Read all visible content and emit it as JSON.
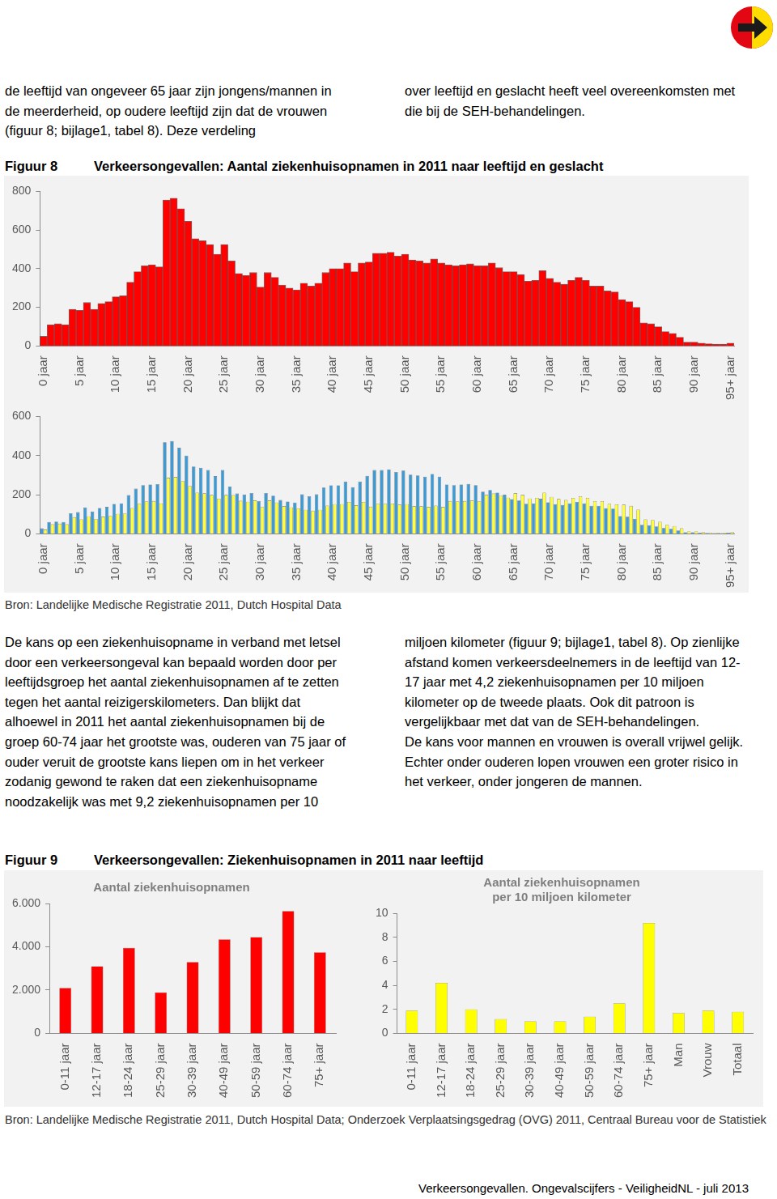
{
  "top_text": {
    "left": "de leeftijd van ongeveer 65 jaar zijn jongens/mannen in de meerderheid, op oudere leeftijd zijn dat de vrouwen (figuur 8; bijlage1, tabel 8). Deze verdeling",
    "right": "over leeftijd en geslacht heeft veel overeenkomsten met die bij de SEH-behandelingen."
  },
  "figure8": {
    "label": "Figuur 8",
    "title": "Verkeersongevallen: Aantal ziekenhuisopnamen in 2011 naar leeftijd en geslacht",
    "source": "Bron: Landelijke Medische Registratie 2011, Dutch Hospital Data"
  },
  "body_text": {
    "left": [
      "De kans op een ziekenhuisopname in verband met letsel door een verkeersongeval kan bepaald worden door per leeftijdsgroep het aantal ziekenhuisopnamen af te zetten tegen het aantal reizigerskilometers. Dan blijkt dat alhoewel in 2011 het aantal ziekenhuisopnamen bij de groep 60-74 jaar het grootste was, ouderen van 75 jaar of ouder veruit de grootste kans liepen om in het verkeer zodanig gewond te raken dat een ziekenhuisopname noodzakelijk was met 9,2 ziekenhuisopnamen per 10"
    ],
    "right": [
      "miljoen kilometer (figuur 9; bijlage1, tabel 8). Op zienlijke afstand komen verkeersdeelnemers in de leeftijd van 12-17 jaar met 4,2 ziekenhuisopnamen per 10 miljoen kilometer op de tweede plaats. Ook dit patroon is vergelijkbaar met dat van de SEH-behandelingen.",
      "De kans voor mannen en vrouwen is overall vrijwel gelijk. Echter onder ouderen lopen vrouwen een groter risico in het verkeer, onder jongeren de mannen."
    ]
  },
  "figure9": {
    "label": "Figuur 9",
    "title": "Verkeersongevallen: Ziekenhuisopnamen in 2011 naar leeftijd",
    "source": "Bron: Landelijke Medische Registratie 2011, Dutch Hospital Data; Onderzoek Verplaatsingsgedrag (OVG) 2011, Centraal Bureau voor de Statistiek"
  },
  "footer": "Verkeersongevallen. Ongevalscijfers - VeiligheidNL - juli 2013",
  "chart_data": [
    {
      "type": "bar",
      "categories": [
        "0 jaar",
        null,
        null,
        null,
        null,
        "5 jaar",
        null,
        null,
        null,
        null,
        "10 jaar",
        null,
        null,
        null,
        null,
        "15 jaar",
        null,
        null,
        null,
        null,
        "20 jaar",
        null,
        null,
        null,
        null,
        "25 jaar",
        null,
        null,
        null,
        null,
        "30 jaar",
        null,
        null,
        null,
        null,
        "35 jaar",
        null,
        null,
        null,
        null,
        "40 jaar",
        null,
        null,
        null,
        null,
        "45 jaar",
        null,
        null,
        null,
        null,
        "50 jaar",
        null,
        null,
        null,
        null,
        "55 jaar",
        null,
        null,
        null,
        null,
        "60 jaar",
        null,
        null,
        null,
        null,
        "65 jaar",
        null,
        null,
        null,
        null,
        "70 jaar",
        null,
        null,
        null,
        null,
        "75 jaar",
        null,
        null,
        null,
        null,
        "80 jaar",
        null,
        null,
        null,
        null,
        "85 jaar",
        null,
        null,
        null,
        null,
        "90 jaar",
        null,
        null,
        null,
        null,
        "95+ jaar"
      ],
      "values": [
        50,
        110,
        115,
        110,
        190,
        185,
        225,
        190,
        220,
        230,
        255,
        260,
        330,
        385,
        415,
        420,
        410,
        755,
        765,
        710,
        645,
        555,
        545,
        525,
        475,
        525,
        440,
        375,
        365,
        380,
        305,
        380,
        355,
        315,
        300,
        290,
        325,
        310,
        325,
        380,
        400,
        400,
        430,
        385,
        430,
        435,
        480,
        480,
        485,
        465,
        475,
        445,
        440,
        430,
        450,
        430,
        420,
        415,
        420,
        425,
        415,
        415,
        430,
        405,
        385,
        385,
        370,
        335,
        340,
        390,
        350,
        330,
        320,
        340,
        355,
        340,
        310,
        310,
        285,
        280,
        240,
        230,
        200,
        120,
        115,
        100,
        75,
        65,
        45,
        20,
        20,
        15,
        12,
        10,
        10,
        15
      ],
      "color": "#ff0000",
      "ylim": [
        0,
        800
      ],
      "yticks": [
        0,
        200,
        400,
        600,
        800
      ],
      "grid": false
    },
    {
      "type": "bar",
      "categories": [
        "0 jaar",
        null,
        null,
        null,
        null,
        "5 jaar",
        null,
        null,
        null,
        null,
        "10 jaar",
        null,
        null,
        null,
        null,
        "15 jaar",
        null,
        null,
        null,
        null,
        "20 jaar",
        null,
        null,
        null,
        null,
        "25 jaar",
        null,
        null,
        null,
        null,
        "30 jaar",
        null,
        null,
        null,
        null,
        "35 jaar",
        null,
        null,
        null,
        null,
        "40 jaar",
        null,
        null,
        null,
        null,
        "45 jaar",
        null,
        null,
        null,
        null,
        "50 jaar",
        null,
        null,
        null,
        null,
        "55 jaar",
        null,
        null,
        null,
        null,
        "60 jaar",
        null,
        null,
        null,
        null,
        "65 jaar",
        null,
        null,
        null,
        null,
        "70 jaar",
        null,
        null,
        null,
        null,
        "75 jaar",
        null,
        null,
        null,
        null,
        "80 jaar",
        null,
        null,
        null,
        null,
        "85 jaar",
        null,
        null,
        null,
        null,
        "90 jaar",
        null,
        null,
        null,
        null,
        "95+ jaar"
      ],
      "series": [
        {
          "color": "#3b9bd6",
          "values": [
            28,
            61,
            63,
            61,
            105,
            111,
            135,
            114,
            132,
            138,
            153,
            156,
            198,
            231,
            249,
            252,
            254,
            468,
            474,
            440,
            400,
            344,
            338,
            326,
            295,
            326,
            242,
            206,
            201,
            209,
            168,
            209,
            195,
            173,
            165,
            160,
            202,
            192,
            202,
            236,
            248,
            248,
            267,
            239,
            267,
            296,
            326,
            326,
            330,
            316,
            323,
            303,
            299,
            292,
            306,
            292,
            252,
            249,
            252,
            255,
            249,
            216,
            224,
            211,
            200,
            177,
            170,
            154,
            156,
            179,
            161,
            152,
            147,
            156,
            163,
            156,
            143,
            143,
            131,
            129,
            91,
            87,
            76,
            46,
            44,
            38,
            29,
            25,
            17,
            8,
            8,
            6,
            5,
            4,
            4,
            6
          ]
        },
        {
          "color": "#ffff33",
          "values": [
            22,
            49,
            52,
            49,
            85,
            74,
            90,
            76,
            88,
            92,
            102,
            104,
            132,
            154,
            166,
            168,
            156,
            287,
            291,
            270,
            245,
            211,
            207,
            199,
            180,
            199,
            198,
            169,
            164,
            171,
            137,
            171,
            160,
            142,
            135,
            130,
            123,
            118,
            123,
            144,
            152,
            152,
            163,
            146,
            163,
            139,
            154,
            154,
            155,
            149,
            152,
            142,
            141,
            138,
            144,
            138,
            168,
            166,
            168,
            170,
            166,
            199,
            206,
            194,
            185,
            208,
            200,
            181,
            184,
            211,
            189,
            178,
            173,
            184,
            192,
            184,
            167,
            167,
            154,
            151,
            149,
            143,
            124,
            74,
            71,
            62,
            46,
            40,
            28,
            12,
            12,
            9,
            7,
            6,
            6,
            9
          ]
        }
      ],
      "ylim": [
        0,
        600
      ],
      "yticks": [
        0,
        200,
        400,
        600
      ],
      "grid": false
    },
    {
      "type": "bar",
      "title": "Aantal ziekenhuisopnamen",
      "categories": [
        "0-11 jaar",
        "12-17 jaar",
        "18-24 jaar",
        "25-29 jaar",
        "30-39 jaar",
        "40-49 jaar",
        "50-59 jaar",
        "60-74 jaar",
        "75+ jaar"
      ],
      "values": [
        2100,
        3100,
        3950,
        1900,
        3300,
        4350,
        4450,
        5650,
        3750
      ],
      "color": "#ff0000",
      "ylim": [
        0,
        6000
      ],
      "yticks": [
        0,
        {
          "value": 2000,
          "label": "2.000"
        },
        {
          "value": 4000,
          "label": "4.000"
        },
        {
          "value": 6000,
          "label": "6.000"
        }
      ],
      "grid": false
    },
    {
      "type": "bar",
      "title": [
        "Aantal ziekenhuisopnamen",
        "per 10 miljoen kilometer"
      ],
      "categories": [
        "0-11 jaar",
        "12-17 jaar",
        "18-24 jaar",
        "25-29 jaar",
        "30-39 jaar",
        "40-49 jaar",
        "50-59 jaar",
        "60-74 jaar",
        "75+ jaar",
        "Man",
        "Vrouw",
        "Totaal"
      ],
      "values": [
        1.9,
        4.2,
        2.0,
        1.2,
        1.0,
        1.0,
        1.4,
        2.5,
        9.2,
        1.7,
        1.9,
        1.8
      ],
      "color": "#ffff00",
      "ylim": [
        0,
        10
      ],
      "yticks": [
        0,
        2,
        4,
        6,
        8,
        10
      ],
      "grid": false
    }
  ]
}
